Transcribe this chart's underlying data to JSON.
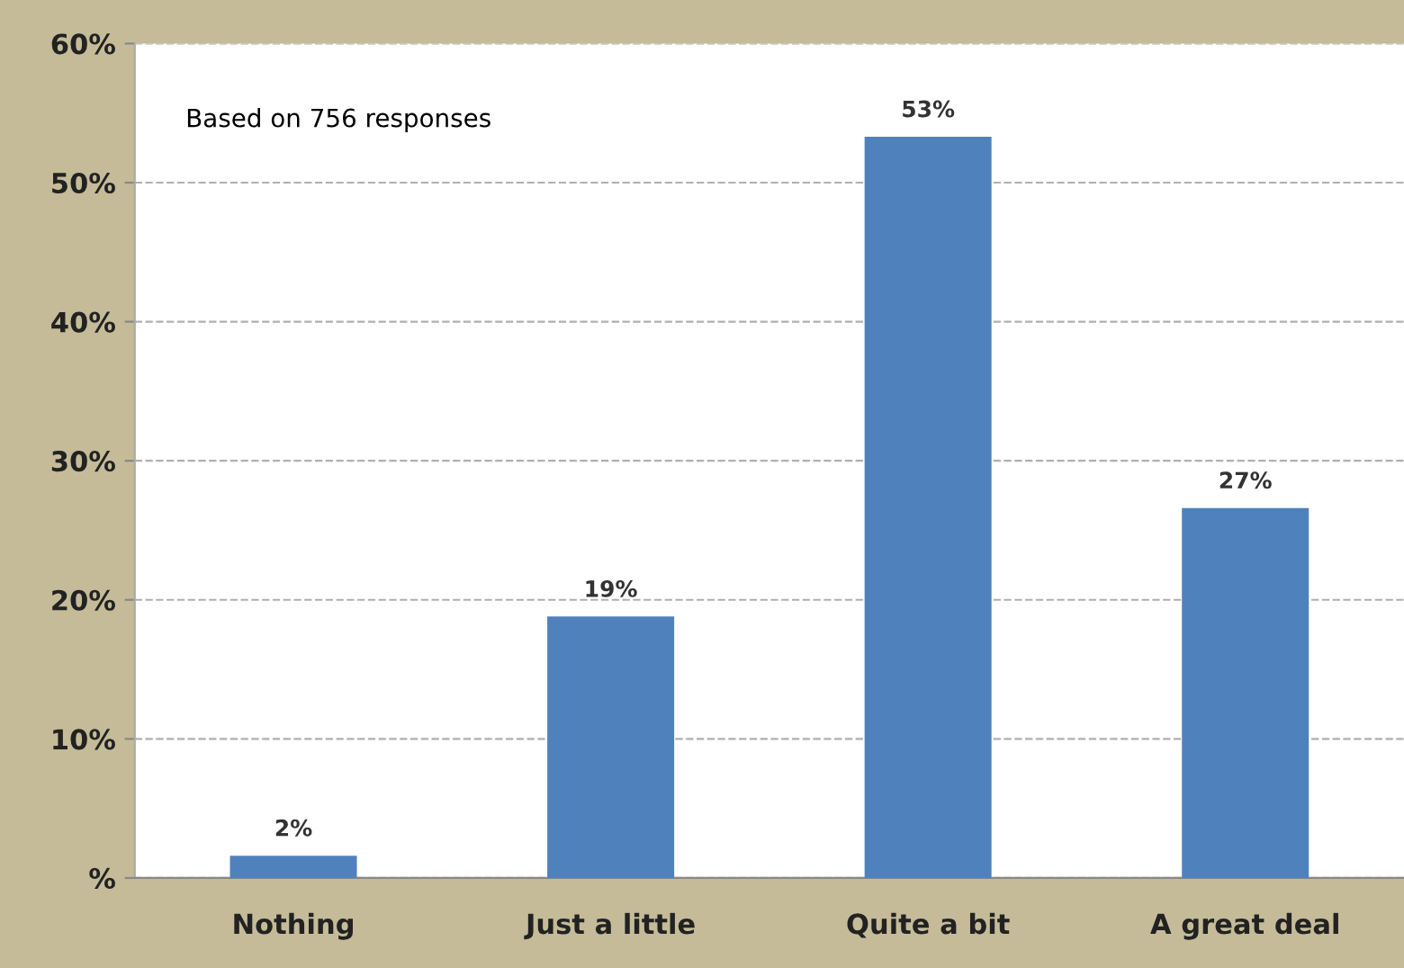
{
  "chart_data": {
    "type": "bar",
    "categories": [
      "Nothing",
      "Just a little",
      "Quite a bit",
      "A great deal"
    ],
    "values": [
      1.6,
      18.8,
      53.3,
      26.6
    ],
    "value_labels": [
      "2%",
      "19%",
      "53%",
      "27%"
    ],
    "color": "#4f81bd",
    "ylim": [
      0,
      60
    ],
    "yticks": [
      {
        "value": 0,
        "label": "%"
      },
      {
        "value": 10,
        "label": "10%"
      },
      {
        "value": 20,
        "label": "20%"
      },
      {
        "value": 30,
        "label": "30%"
      },
      {
        "value": 40,
        "label": "40%"
      },
      {
        "value": 50,
        "label": "50%"
      },
      {
        "value": 60,
        "label": "60%"
      }
    ],
    "grid": "y",
    "annotations": [
      "Based on 756 responses"
    ]
  }
}
